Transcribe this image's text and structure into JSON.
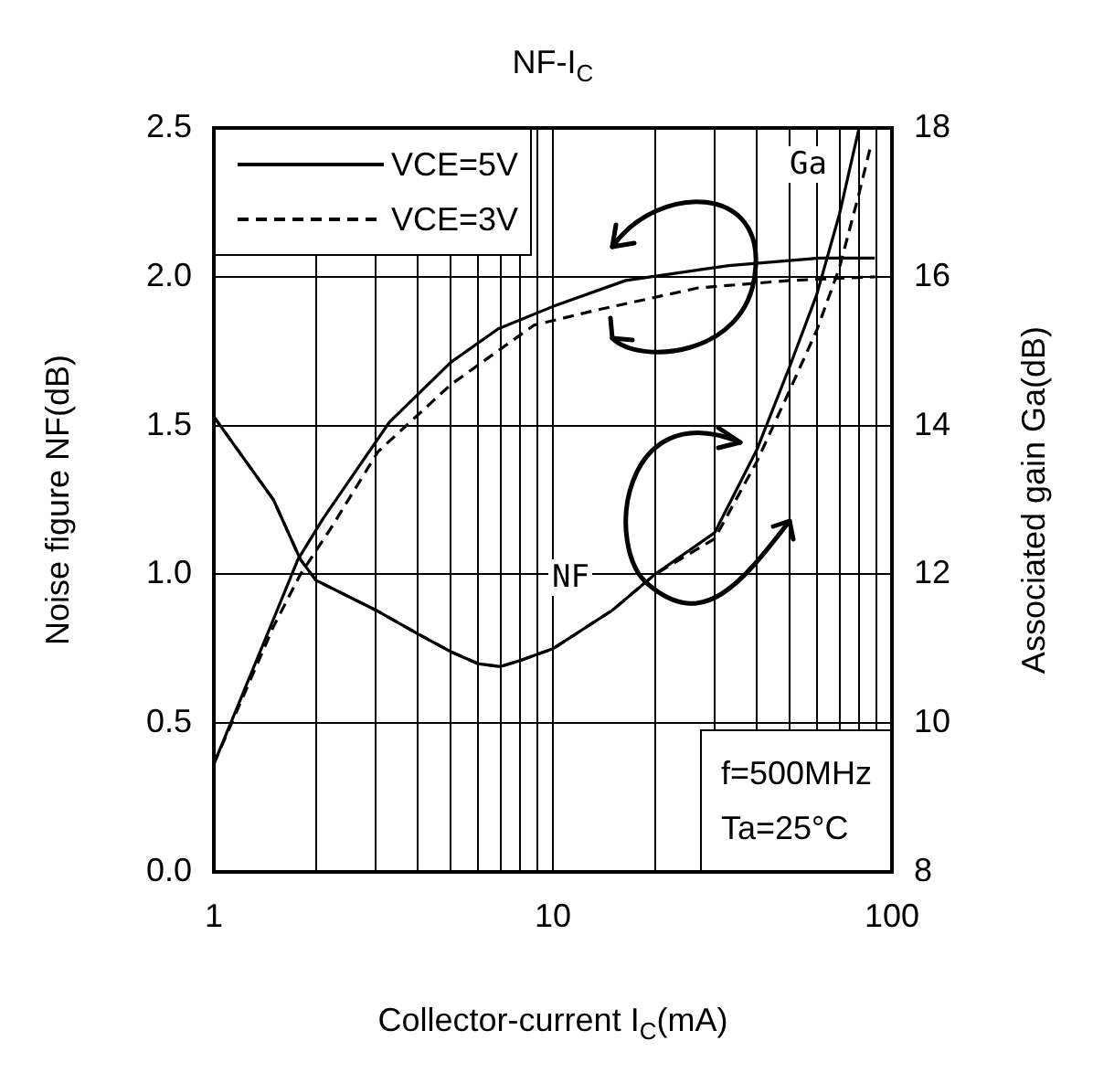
{
  "chart_data": {
    "type": "line",
    "title": "NF-I$_{C}$",
    "xlabel": "Collector-current I$_{C}$(mA)",
    "ylabel": "Noise figure NF(dB)",
    "y2label": "Associated gain Ga(dB)",
    "annotations": [
      "Ga",
      "NF",
      "f=500MHz",
      "Ta=25°C"
    ],
    "log": "x",
    "grid": true,
    "legend": "top left",
    "marker": "none",
    "xlim": [
      1,
      100
    ],
    "xticks": [
      1,
      {
        "value": 2,
        "label": null
      },
      {
        "value": 3,
        "label": null
      },
      {
        "value": 4,
        "label": null
      },
      {
        "value": 5,
        "label": null
      },
      {
        "value": 6,
        "label": null
      },
      {
        "value": 7,
        "label": null
      },
      {
        "value": 8,
        "label": null
      },
      {
        "value": 9,
        "label": null
      },
      10,
      {
        "value": 20,
        "label": null
      },
      {
        "value": 30,
        "label": null
      },
      {
        "value": 40,
        "label": null
      },
      {
        "value": 50,
        "label": null
      },
      {
        "value": 60,
        "label": null
      },
      {
        "value": 70,
        "label": null
      },
      {
        "value": 80,
        "label": null
      },
      {
        "value": 90,
        "label": null
      },
      100
    ],
    "ylim": [
      0,
      2.5
    ],
    "yticks": [
      {
        "value": 0,
        "label": "0.0"
      },
      {
        "value": 0.5,
        "label": "0.5"
      },
      {
        "value": 1,
        "label": "1.0"
      },
      {
        "value": 1.5,
        "label": "1.5"
      },
      {
        "value": 2,
        "label": "2.0"
      },
      {
        "value": 2.5,
        "label": "2.5"
      }
    ],
    "y2lim": [
      8,
      18
    ],
    "y2ticks": [
      8,
      10,
      12,
      14,
      16,
      18
    ],
    "series": [
      {
        "name": "VCE=5V",
        "color": "#000000",
        "line_style": "solid",
        "x": [
          1,
          1.5,
          1.8,
          2,
          3,
          4,
          5,
          6,
          7,
          8,
          10,
          15,
          20,
          30,
          40,
          50,
          60,
          70,
          80
        ],
        "values": [
          1.53,
          1.25,
          1.05,
          0.98,
          0.88,
          0.8,
          0.74,
          0.7,
          0.69,
          0.71,
          0.75,
          0.88,
          1.0,
          1.14,
          1.42,
          1.7,
          1.94,
          2.21,
          2.5
        ]
      },
      {
        "name": "VCE=3V",
        "color": "#000000",
        "line_style": "dashed",
        "x": [
          1,
          1.5,
          1.8,
          2,
          3,
          4,
          5,
          6,
          7,
          8,
          10,
          15,
          20,
          30,
          40,
          50,
          60,
          70,
          80,
          87
        ],
        "values": [
          1.53,
          1.25,
          1.05,
          0.98,
          0.88,
          0.8,
          0.74,
          0.7,
          0.69,
          0.71,
          0.75,
          0.88,
          1.0,
          1.12,
          1.38,
          1.62,
          1.82,
          2.03,
          2.28,
          2.45
        ]
      },
      {
        "color": "#000000",
        "line_style": "solid",
        "axis": "y2",
        "x": [
          1,
          1.5,
          1.77,
          2.1,
          3.3,
          5,
          6.9,
          10,
          16.4,
          33,
          61,
          89
        ],
        "values": [
          9.45,
          11.4,
          12.2,
          12.75,
          14.05,
          14.85,
          15.3,
          15.6,
          15.95,
          16.15,
          16.25,
          16.25
        ]
      },
      {
        "color": "#000000",
        "line_style": "dashed",
        "axis": "y2",
        "x": [
          1,
          1.5,
          1.8,
          2.2,
          3.05,
          5,
          8.8,
          13.4,
          26.8,
          50,
          89
        ],
        "values": [
          9.45,
          11.3,
          12.0,
          12.6,
          13.65,
          14.55,
          15.35,
          15.55,
          15.85,
          15.95,
          16.0
        ]
      }
    ]
  }
}
